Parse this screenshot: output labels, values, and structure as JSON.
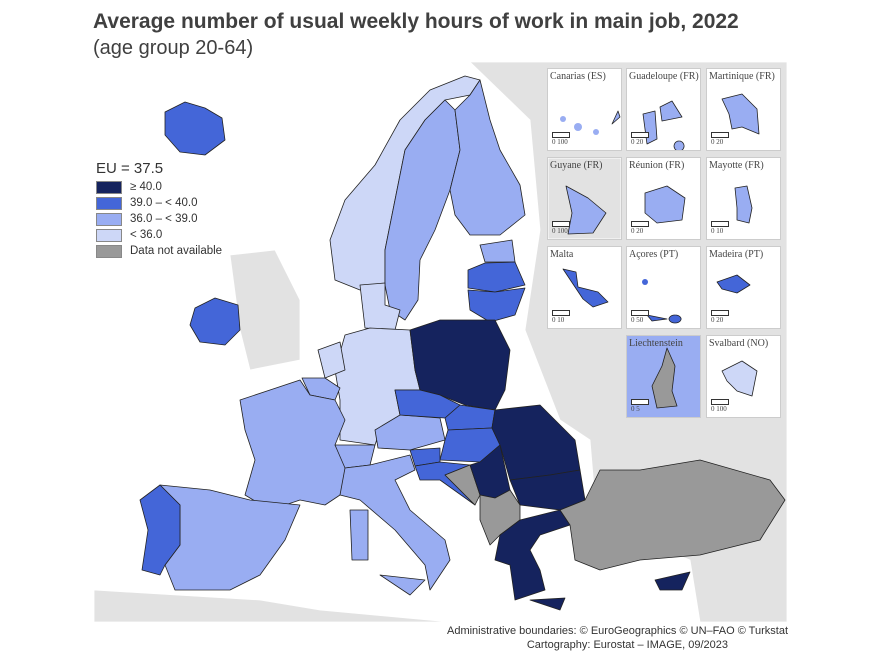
{
  "title": "Average number of usual weekly hours of work in main job, 2022",
  "subtitle": "(age group 20-64)",
  "legend": {
    "header": "EU = 37.5",
    "items": [
      {
        "label": "≥ 40.0",
        "color": "#15235e"
      },
      {
        "label": "39.0 – < 40.0",
        "color": "#4466d8"
      },
      {
        "label": "36.0 – < 39.0",
        "color": "#99adf2"
      },
      {
        "label": "< 36.0",
        "color": "#cdd7f7"
      },
      {
        "label": "Data not available",
        "color": "#999999"
      }
    ]
  },
  "insets": [
    {
      "label": "Canarias (ES)",
      "scale": "0    100"
    },
    {
      "label": "Guadeloupe (FR)",
      "scale": "0    20"
    },
    {
      "label": "Martinique (FR)",
      "scale": "0    20"
    },
    {
      "label": "Guyane (FR)",
      "scale": "0  100"
    },
    {
      "label": "Réunion (FR)",
      "scale": "0    20"
    },
    {
      "label": "Mayotte (FR)",
      "scale": "0    10"
    },
    {
      "label": "Malta",
      "scale": "0    10"
    },
    {
      "label": "Açores (PT)",
      "scale": "0    50"
    },
    {
      "label": "Madeira (PT)",
      "scale": "0    20"
    },
    {
      "label": "Liechtenstein",
      "scale": "0    5"
    },
    {
      "label": "Svalbard (NO)",
      "scale": "0  100"
    }
  ],
  "credits": [
    "Administrative boundaries: © EuroGeographics © UN–FAO © Turkstat",
    "Cartography: Eurostat – IMAGE, 09/2023"
  ]
}
